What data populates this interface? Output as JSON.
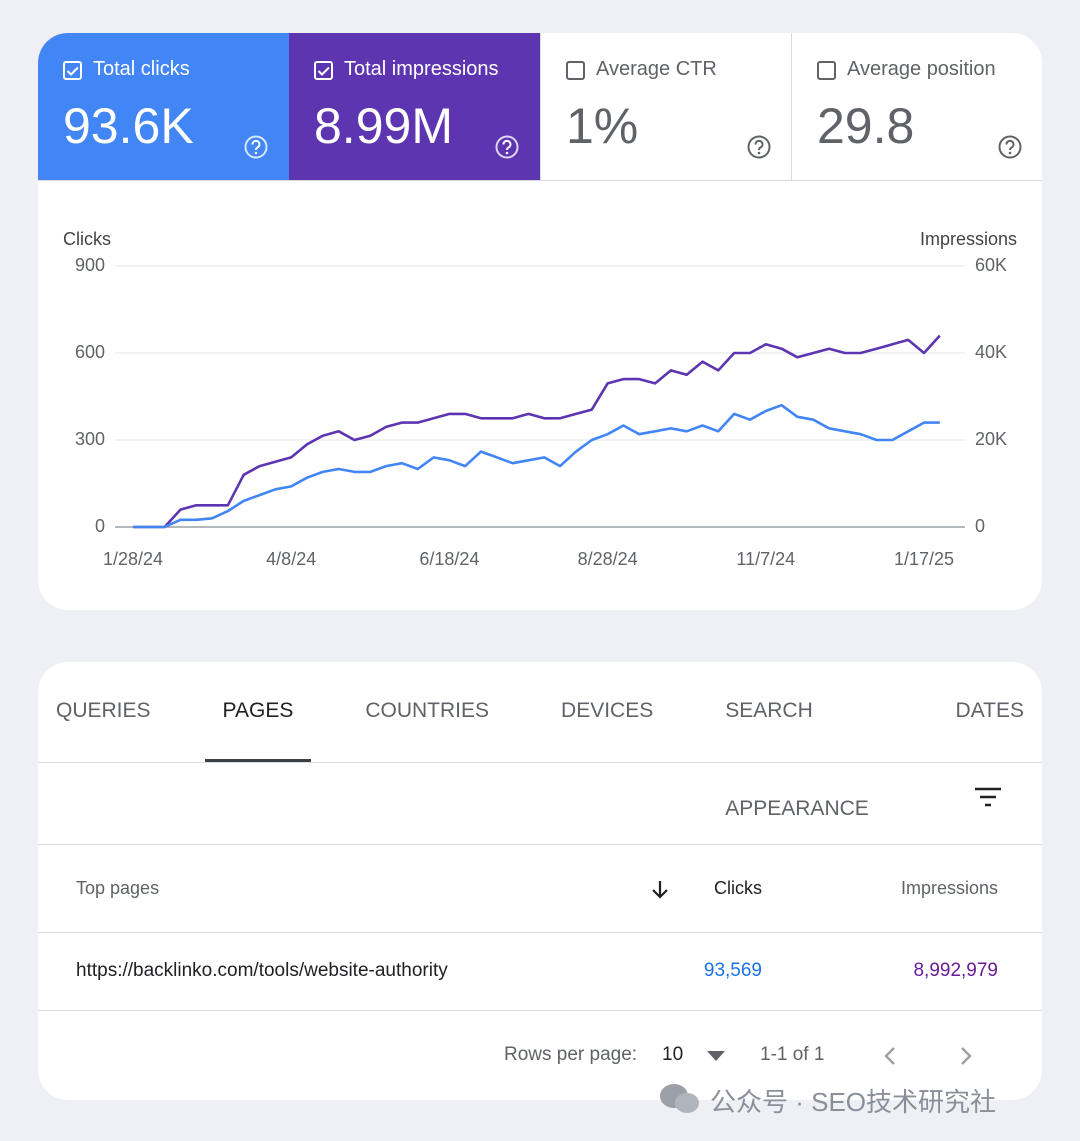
{
  "metrics": [
    {
      "label": "Total clicks",
      "value": "93.6K",
      "checked": true,
      "color": "#4285f4"
    },
    {
      "label": "Total impressions",
      "value": "8.99M",
      "checked": true,
      "color": "#5e35b1"
    },
    {
      "label": "Average CTR",
      "value": "1%",
      "checked": false,
      "color": "#ffffff"
    },
    {
      "label": "Average position",
      "value": "29.8",
      "checked": false,
      "color": "#ffffff"
    }
  ],
  "chart_data": {
    "type": "line",
    "y_label": "Clicks",
    "y2_label": "Impressions",
    "categories": [
      "1/28/24",
      null,
      null,
      null,
      null,
      null,
      null,
      null,
      null,
      null,
      "4/8/24",
      null,
      null,
      null,
      null,
      null,
      null,
      null,
      null,
      null,
      "6/18/24",
      null,
      null,
      null,
      null,
      null,
      null,
      null,
      null,
      null,
      "8/28/24",
      null,
      null,
      null,
      null,
      null,
      null,
      null,
      null,
      null,
      "11/7/24",
      null,
      null,
      null,
      null,
      null,
      null,
      null,
      null,
      null,
      "1/17/25",
      null
    ],
    "ylim": [
      0,
      900
    ],
    "yticks": [
      0,
      300,
      600,
      900
    ],
    "y2lim": [
      0,
      60000
    ],
    "y2ticks": [
      0,
      {
        "value": 20000,
        "label": "20K"
      },
      {
        "value": 40000,
        "label": "40K"
      },
      {
        "value": 60000,
        "label": "60K"
      }
    ],
    "grid": true,
    "series": [
      {
        "color": "#5e35b1",
        "axis": "y2",
        "values": [
          0,
          0,
          0,
          4000,
          5000,
          5000,
          5000,
          12000,
          14000,
          15000,
          16000,
          19000,
          21000,
          22000,
          20000,
          21000,
          23000,
          24000,
          24000,
          25000,
          26000,
          26000,
          25000,
          25000,
          25000,
          26000,
          25000,
          25000,
          26000,
          27000,
          33000,
          34000,
          34000,
          33000,
          36000,
          35000,
          38000,
          36000,
          40000,
          40000,
          42000,
          41000,
          39000,
          40000,
          41000,
          40000,
          40000,
          41000,
          42000,
          43000,
          40000,
          44000
        ]
      },
      {
        "color": "#4285f4",
        "values": [
          0,
          0,
          0,
          25,
          25,
          30,
          55,
          90,
          110,
          130,
          140,
          170,
          190,
          200,
          190,
          190,
          210,
          220,
          200,
          240,
          230,
          210,
          260,
          240,
          220,
          230,
          240,
          210,
          260,
          300,
          320,
          350,
          320,
          330,
          340,
          330,
          350,
          330,
          390,
          370,
          400,
          420,
          380,
          370,
          340,
          330,
          320,
          300,
          300,
          330,
          360,
          360
        ]
      }
    ]
  },
  "tabs": [
    "QUERIES",
    "PAGES",
    "COUNTRIES",
    "DEVICES",
    "SEARCH APPEARANCE",
    "DATES"
  ],
  "active_tab": 1,
  "table": {
    "headers": [
      "Top pages",
      "Clicks",
      "Impressions"
    ],
    "sort_column": 1,
    "rows": [
      [
        "https://backlinko.com/tools/website-authority",
        "93,569",
        "8,992,979"
      ]
    ]
  },
  "pagination": {
    "rows_label": "Rows per page:",
    "rows_per_page": "10",
    "range": "1-1 of 1"
  },
  "watermark": "公众号 · SEO技术研究社"
}
